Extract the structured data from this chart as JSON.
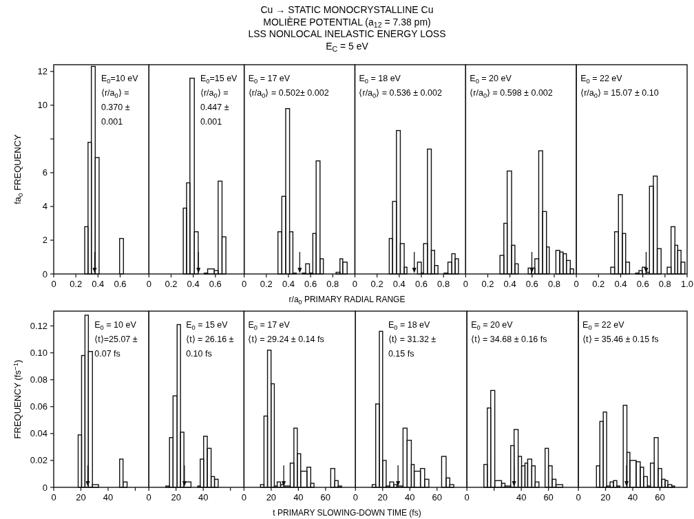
{
  "chart_data": [
    {
      "type": "histogram",
      "ylabel": "fa$_{0}$  FREQUENCY",
      "annotations": [
        "E$_{0}$=10 eV\n⟨r/a$_{0}$⟩ =\n0.370 ±\n0.001"
      ],
      "bins": [
        0.28,
        0.31,
        0.34,
        0.375,
        0.41,
        0.595,
        0.63
      ],
      "values": [
        2.8,
        7.8,
        12.3,
        6.9,
        0,
        2.1
      ],
      "color": "#111111",
      "xlim": [
        0,
        0.86
      ],
      "ylim": [
        0,
        12.4
      ],
      "xticks": [
        0,
        0.2,
        0.4,
        0.6
      ],
      "yticks": [
        0,
        2,
        4,
        6,
        {
          "value": 8,
          "label": null
        },
        10,
        12
      ],
      "ref_lines": [
        {
          "axis": "x",
          "value": 0.37
        }
      ]
    },
    {
      "type": "histogram",
      "annotations": [
        "E$_{0}$=15 eV\n⟨r/a$_{0}$⟩ =\n0.447 ±\n0.001"
      ],
      "bins": [
        0.31,
        0.34,
        0.37,
        0.41,
        0.445,
        0.5,
        0.53,
        0.59,
        0.625,
        0.66,
        0.695
      ],
      "values": [
        3.9,
        5.4,
        11.6,
        2.5,
        0,
        0.05,
        0.3,
        0.2,
        5.5,
        2.2
      ],
      "color": "#111111",
      "xlim": [
        0,
        0.86
      ],
      "ylim": [
        0,
        12.4
      ],
      "xticks": [
        0,
        0.2,
        0.4,
        0.6
      ],
      "tick_labels": "x",
      "ref_lines": [
        {
          "axis": "x",
          "value": 0.447
        }
      ]
    },
    {
      "type": "histogram",
      "title": "Cu → STATIC MONOCRYSTALLINE Cu\nMOLIÈRE POTENTIAL (a$_{12}$ = 7.38 pm)\nLSS NONLOCAL INELASTIC ENERGY LOSS\nE$_{C}$ = 5 eV",
      "annotations": [
        "E$_{0}$ = 17 eV\n⟨r/a$_{0}$⟩ = 0.502± 0.002"
      ],
      "bins": [
        0.305,
        0.34,
        0.375,
        0.41,
        0.44,
        0.47,
        0.525,
        0.555,
        0.59,
        0.62,
        0.65,
        0.685,
        0.715,
        0.83,
        0.865,
        0.89,
        0.93
      ],
      "values": [
        2.5,
        4.6,
        9.8,
        2.5,
        0.05,
        0,
        0.05,
        0.6,
        0.05,
        2.4,
        6.7,
        0.9,
        0,
        0.1,
        0.9,
        0.7
      ],
      "color": "#111111",
      "xlim": [
        0,
        1
      ],
      "ylim": [
        0,
        12.4
      ],
      "xticks": [
        0,
        0.2,
        0.4,
        0.6,
        0.8
      ],
      "tick_labels": "x",
      "ref_lines": [
        {
          "axis": "x",
          "value": 0.502
        }
      ]
    },
    {
      "type": "histogram",
      "xlabel": "r/a$_{0}$  PRIMARY RADIAL RANGE",
      "annotations": [
        "E$_{0}$ = 18 eV\n⟨r/a$_{0}$⟩ = 0.536 ± 0.002"
      ],
      "bins": [
        0.31,
        0.34,
        0.375,
        0.41,
        0.445,
        0.47,
        0.565,
        0.6,
        0.62,
        0.655,
        0.69,
        0.72,
        0.75,
        0.805,
        0.84,
        0.875,
        0.905,
        0.935
      ],
      "values": [
        2.1,
        4.3,
        8.5,
        1.8,
        0.4,
        0,
        0.7,
        0.05,
        1.8,
        7.4,
        1.4,
        0.5,
        0,
        0.05,
        0.7,
        1.2,
        0.9
      ],
      "color": "#111111",
      "xlim": [
        0,
        1
      ],
      "ylim": [
        0,
        12.4
      ],
      "xticks": [
        0,
        0.2,
        0.4,
        0.6,
        0.8
      ],
      "tick_labels": "x",
      "ref_lines": [
        {
          "axis": "x",
          "value": 0.536
        }
      ]
    },
    {
      "type": "histogram",
      "annotations": [
        "E$_{0}$ = 20 eV\n⟨r/a$_{0}$⟩ = 0.598 ± 0.002"
      ],
      "bins": [
        0.31,
        0.345,
        0.375,
        0.415,
        0.445,
        0.475,
        0.565,
        0.595,
        0.625,
        0.66,
        0.695,
        0.73,
        0.755,
        0.815,
        0.85,
        0.88,
        0.91,
        0.945,
        0.975
      ],
      "values": [
        1.1,
        3.0,
        6.1,
        1.7,
        0.6,
        0,
        0.35,
        0.35,
        0.9,
        7.3,
        3.7,
        1.6,
        0,
        1.4,
        1.3,
        1.2,
        0.8,
        0.3
      ],
      "color": "#111111",
      "xlim": [
        0,
        1
      ],
      "ylim": [
        0,
        12.4
      ],
      "xticks": [
        0,
        0.2,
        0.4,
        0.6,
        0.8
      ],
      "tick_labels": "x",
      "ref_lines": [
        {
          "axis": "x",
          "value": 0.598
        }
      ]
    },
    {
      "type": "histogram",
      "annotations": [
        "E$_{0}$ = 22 eV\n⟨r/a$_{0}$⟩ = 15.07 ± 0.10"
      ],
      "bins": [
        0.31,
        0.345,
        0.38,
        0.415,
        0.445,
        0.48,
        0.535,
        0.565,
        0.595,
        0.63,
        0.66,
        0.695,
        0.73,
        0.765,
        0.82,
        0.855,
        0.89,
        0.915,
        0.945,
        0.98
      ],
      "values": [
        0.4,
        2.5,
        4.7,
        2.4,
        0.7,
        0,
        0.05,
        0.2,
        0.4,
        0.1,
        5.2,
        5.8,
        1.5,
        0,
        0.4,
        2.8,
        1.7,
        1.4,
        0.7
      ],
      "color": "#111111",
      "xlim": [
        0,
        1
      ],
      "ylim": [
        0,
        12.4
      ],
      "xticks": [
        0,
        0.2,
        0.4,
        0.6,
        0.8,
        {
          "value": 1,
          "label": "1.0"
        }
      ],
      "tick_labels": "x",
      "ref_lines": [
        {
          "axis": "x",
          "value": 0.63
        }
      ]
    },
    {
      "type": "histogram",
      "ylabel": "FREQUENCY (fs$^{−1}$)",
      "annotations": [
        "E$_{0}$ = 10 eV\n⟨t⟩=25.07 ±\n0.07 fs"
      ],
      "bins": [
        18,
        20.5,
        23,
        25.5,
        28.5,
        33,
        48.5,
        51,
        54
      ],
      "values": [
        0.039,
        0.098,
        0.128,
        0.101,
        0.002,
        0,
        0.021,
        0.004
      ],
      "color": "#111111",
      "xlim": [
        0,
        70
      ],
      "ylim": [
        0,
        0.131
      ],
      "xticks": [
        0,
        20,
        40,
        {
          "value": 60,
          "label": null
        }
      ],
      "yticks": [
        0,
        0.02,
        0.04,
        0.06,
        0.08,
        {
          "value": 0.1,
          "label": "0.10"
        },
        0.12
      ],
      "ref_lines": [
        {
          "axis": "x",
          "value": 25.07
        }
      ]
    },
    {
      "type": "histogram",
      "annotations": [
        "E$_{0}$ = 15 eV\n⟨t⟩ = 26.16 ±\n0.10 fs"
      ],
      "bins": [
        12.5,
        15.2,
        17.8,
        20.8,
        23.3,
        25.8,
        31,
        36,
        37.8,
        40.3,
        43,
        45.8,
        48.3,
        51
      ],
      "values": [
        0.001,
        0.037,
        0.068,
        0.121,
        0.041,
        0.004,
        0,
        0.001,
        0.021,
        0.038,
        0.029,
        0.008,
        0.006
      ],
      "color": "#111111",
      "xlim": [
        0,
        70
      ],
      "ylim": [
        0,
        0.131
      ],
      "xticks": [
        0,
        20,
        40,
        {
          "value": 60,
          "label": null
        }
      ],
      "tick_labels": "x",
      "ref_lines": [
        {
          "axis": "x",
          "value": 26.16
        }
      ]
    },
    {
      "type": "histogram",
      "annotations": [
        "E$_{0}$ = 17 eV\n⟨t⟩ = 29.24 ± 0.14 fs"
      ],
      "bins": [
        12.1,
        14.7,
        17.3,
        19.9,
        22.3,
        24.4,
        26.9,
        29.4,
        34,
        36.7,
        39.2,
        41.7,
        46.3,
        49.1,
        51.5,
        63.8,
        66.8,
        69.3,
        71.8
      ],
      "values": [
        0.002,
        0.053,
        0.102,
        0.077,
        0.001,
        0.004,
        0.002,
        0.001,
        0.018,
        0.044,
        0.025,
        0.012,
        0.015,
        0.003,
        0,
        0.014,
        0.005,
        0.001
      ],
      "color": "#111111",
      "xlim": [
        0,
        82
      ],
      "ylim": [
        0,
        0.131
      ],
      "xticks": [
        0,
        20,
        40,
        60
      ],
      "tick_labels": "x",
      "ref_lines": [
        {
          "axis": "x",
          "value": 29.24
        }
      ]
    },
    {
      "type": "histogram",
      "xlabel": "t  PRIMARY SLOWING-DOWN TIME (fs)",
      "annotations": [
        "E$_{0}$ = 18 eV\n⟨t⟩ = 31.32 ±\n0.15 fs"
      ],
      "bins": [
        12.3,
        14.9,
        17.6,
        20,
        22.6,
        25.2,
        28.1,
        30.5,
        35,
        38,
        41.1,
        43.2,
        47.8,
        50.9,
        54,
        63.4,
        66.7,
        69.4,
        72.3
      ],
      "values": [
        0.002,
        0.062,
        0.116,
        0.02,
        0.001,
        0.004,
        0.002,
        0.001,
        0.044,
        0.035,
        0.017,
        0.012,
        0.014,
        0.006,
        0,
        0.023,
        0.007,
        0.002
      ],
      "color": "#111111",
      "xlim": [
        0,
        82
      ],
      "ylim": [
        0,
        0.131
      ],
      "xticks": [
        0,
        20,
        40,
        60
      ],
      "tick_labels": "x",
      "ref_lines": [
        {
          "axis": "x",
          "value": 31.32
        }
      ]
    },
    {
      "type": "histogram",
      "annotations": [
        "E$_{0}$ = 20 eV\n⟨t⟩ = 34.68 ± 0.16 fs"
      ],
      "bins": [
        12.5,
        15,
        17.5,
        20.5,
        25.5,
        28,
        32.2,
        34.7,
        37.7,
        40.2,
        42.7,
        44.7,
        47.7,
        50.2,
        53,
        57.5,
        60,
        62.7,
        65.5,
        70.5
      ],
      "values": [
        0.017,
        0.059,
        0.072,
        0.005,
        0.003,
        0.001,
        0.031,
        0.043,
        0.023,
        0.016,
        0.018,
        0.021,
        0.016,
        0.004,
        0,
        0.029,
        0.016,
        0.006,
        0.002
      ],
      "color": "#111111",
      "xlim": [
        0,
        82
      ],
      "ylim": [
        0,
        0.131
      ],
      "xticks": [
        0,
        {
          "value": 20,
          "label": null
        },
        40,
        60
      ],
      "tick_labels": "x",
      "ref_lines": [
        {
          "axis": "x",
          "value": 34.68
        }
      ]
    },
    {
      "type": "histogram",
      "annotations": [
        "E$_{0}$ = 22 eV\n⟨t⟩ = 35.46 ± 0.15 fs"
      ],
      "bins": [
        13.3,
        15.8,
        18.3,
        20.8,
        23.3,
        25.8,
        28.3,
        30.5,
        33,
        35.7,
        37.9,
        42.5,
        45.5,
        48,
        50.8,
        53,
        55.8,
        58.7,
        61.3,
        63.8,
        65.8,
        68.7,
        70.8
      ],
      "values": [
        0.016,
        0.049,
        0.056,
        0.001,
        0.004,
        0.005,
        0.001,
        0,
        0.061,
        0.026,
        0.02,
        0.019,
        0.015,
        0.008,
        0.001,
        0.018,
        0.037,
        0.014,
        0.006,
        0.005,
        0.002,
        0.001
      ],
      "color": "#111111",
      "xlim": [
        0,
        80
      ],
      "ylim": [
        0,
        0.131
      ],
      "xticks": [
        0,
        20,
        40,
        60
      ],
      "tick_labels": "x",
      "ref_lines": [
        {
          "axis": "x",
          "value": 35.46
        }
      ]
    }
  ]
}
